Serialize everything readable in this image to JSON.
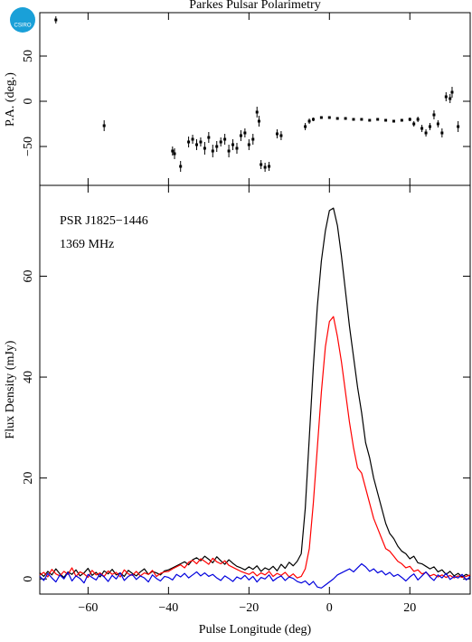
{
  "logo": {
    "text": "CSIRO"
  },
  "chart_data": [
    {
      "type": "scatter",
      "title": "Parkes Pulsar Polarimetry",
      "ylabel": "P.A. (deg.)",
      "color": "#000000",
      "x": [
        -68,
        -56,
        -39,
        -38.5,
        -37,
        -35,
        -34,
        -33,
        -32,
        -31,
        -30,
        -29,
        -28,
        -27,
        -26,
        -25,
        -24,
        -23,
        -22,
        -21,
        -20,
        -19,
        -18,
        -17.5,
        -17,
        -16,
        -15,
        -13,
        -12,
        -6,
        -5,
        -4,
        -2,
        0,
        2,
        4,
        6,
        8,
        10,
        12,
        14,
        16,
        18,
        20,
        21,
        22,
        23,
        24,
        25,
        26,
        27,
        28,
        29,
        30,
        30.5,
        32
      ],
      "values": [
        90,
        -27,
        -55,
        -58,
        -72,
        -45,
        -42,
        -48,
        -45,
        -52,
        -40,
        -55,
        -50,
        -45,
        -42,
        -55,
        -48,
        -52,
        -38,
        -35,
        -48,
        -42,
        -12,
        -22,
        -70,
        -73,
        -72,
        -36,
        -38,
        -28,
        -22,
        -20,
        -18,
        -18,
        -19,
        -19,
        -20,
        -20,
        -21,
        -20,
        -21,
        -22,
        -21,
        -20,
        -25,
        -20,
        -30,
        -35,
        -28,
        -15,
        -25,
        -35,
        5,
        3,
        10,
        -28
      ],
      "errors": [
        4,
        6,
        5,
        6,
        6,
        6,
        5,
        6,
        5,
        7,
        6,
        7,
        6,
        5,
        6,
        7,
        6,
        6,
        6,
        5,
        6,
        6,
        6,
        6,
        5,
        5,
        5,
        5,
        5,
        4,
        3,
        2,
        1,
        1,
        1,
        1,
        1,
        1,
        1,
        1,
        1,
        1,
        1,
        2,
        3,
        3,
        4,
        4,
        4,
        5,
        4,
        5,
        5,
        5,
        6,
        6
      ],
      "xlim": [
        -72,
        35
      ],
      "ylim": [
        -93,
        98
      ],
      "yticks": [
        {
          "value": -50,
          "label": "−50"
        },
        0,
        50
      ]
    },
    {
      "type": "line",
      "ylabel": "Flux Density (mJy)",
      "xlabel": "Pulse Longitude (deg)",
      "annotations": [
        "PSR J1825−1446",
        "1369 MHz"
      ],
      "x": [
        -72,
        -71,
        -70,
        -69,
        -68,
        -67,
        -66,
        -65,
        -64,
        -63,
        -62,
        -61,
        -60,
        -59,
        -58,
        -57,
        -56,
        -55,
        -54,
        -53,
        -52,
        -51,
        -50,
        -49,
        -48,
        -47,
        -46,
        -45,
        -44,
        -43,
        -42,
        -41,
        -40,
        -39,
        -38,
        -37,
        -36,
        -35,
        -34,
        -33,
        -32,
        -31,
        -30,
        -29,
        -28,
        -27,
        -26,
        -25,
        -24,
        -23,
        -22,
        -21,
        -20,
        -19,
        -18,
        -17,
        -16,
        -15,
        -14,
        -13,
        -12,
        -11,
        -10,
        -9,
        -8,
        -7,
        -6,
        -5,
        -4,
        -3,
        -2,
        -1,
        0,
        1,
        2,
        3,
        4,
        5,
        6,
        7,
        8,
        9,
        10,
        11,
        12,
        13,
        14,
        15,
        16,
        17,
        18,
        19,
        20,
        21,
        22,
        23,
        24,
        25,
        26,
        27,
        28,
        29,
        30,
        31,
        32,
        33,
        34,
        35
      ],
      "series": [
        {
          "color": "#000000",
          "values": [
            1.2,
            0.5,
            1.5,
            0.8,
            2,
            1,
            0.3,
            1.4,
            0.9,
            1.8,
            0.6,
            1.2,
            2.1,
            0.7,
            1.3,
            0.4,
            1.6,
            1,
            1.9,
            0.8,
            1.2,
            0.5,
            1.7,
            1.1,
            0.6,
            1.4,
            2,
            0.9,
            1.5,
            1.2,
            0.8,
            1.6,
            1.8,
            2.2,
            2.6,
            3,
            3.4,
            2.8,
            3.8,
            4.2,
            3.6,
            4.5,
            3.9,
            3.2,
            4.4,
            3.6,
            2.9,
            3.8,
            3.1,
            2.5,
            2.2,
            1.8,
            2.4,
            1.9,
            2.6,
            1.5,
            2.2,
            1.8,
            2.5,
            1.6,
            2.9,
            2.1,
            3.3,
            2.6,
            3.5,
            5,
            14,
            28,
            42,
            54,
            63,
            69,
            73,
            73.5,
            70,
            64,
            57,
            50,
            44,
            38,
            33,
            27,
            24,
            20,
            17,
            14,
            11,
            9,
            8,
            6.5,
            5.5,
            5,
            4,
            4.5,
            3.2,
            3,
            2.5,
            2,
            2.4,
            1.4,
            1.8,
            0.9,
            1.5,
            0.6,
            1.1,
            0.4,
            0.9,
            0.5
          ]
        },
        {
          "color": "#ff0000",
          "values": [
            0.8,
            1.3,
            0.4,
            1.9,
            1,
            0.6,
            1.5,
            0.9,
            2.2,
            0.5,
            1.4,
            1,
            0.3,
            1.7,
            0.8,
            1.2,
            0.5,
            1.6,
            0.9,
            1.3,
            0.4,
            1.8,
            1,
            0.7,
            1.5,
            0.6,
            1.2,
            0.9,
            1.7,
            0.5,
            1.1,
            1.4,
            1.5,
            2,
            2.4,
            2.8,
            2.2,
            3.3,
            3.7,
            3,
            4,
            3.5,
            2.9,
            4.1,
            3.4,
            3,
            3.6,
            2.7,
            2.3,
            1.9,
            1.5,
            1.2,
            0.9,
            1.4,
            0.6,
            1.2,
            0.8,
            1.5,
            0.5,
            1.1,
            0.7,
            1.3,
            0.4,
            1,
            0.2,
            0.5,
            2,
            6,
            15,
            26,
            37,
            46,
            51,
            52,
            48,
            43,
            37,
            31,
            26,
            22,
            21,
            18,
            15,
            12,
            10,
            8,
            6,
            5.5,
            4.5,
            3.5,
            3,
            2.2,
            2.5,
            1.5,
            1.8,
            1,
            1.3,
            0.6,
            0.9,
            0.4,
            0.8,
            0.3,
            0.7,
            0.2,
            0.6,
            0.3,
            0.5,
            0.8
          ]
        },
        {
          "color": "#0000dd",
          "values": [
            0.5,
            -0.3,
            1.1,
            0.2,
            -0.6,
            0.8,
            0,
            1.3,
            -0.4,
            0.6,
            0.1,
            -0.8,
            0.9,
            0.3,
            -0.2,
            1,
            0.4,
            -0.5,
            0.7,
            0,
            1.2,
            -0.3,
            0.5,
            0.9,
            -0.1,
            0.6,
            0.2,
            -0.6,
            0.8,
            0.1,
            -0.4,
            0.5,
            0.3,
            -0.2,
            0.9,
            0.4,
            1.1,
            0.2,
            0.8,
            1.4,
            0.6,
            1.2,
            0.5,
            0.9,
            0.2,
            -0.3,
            0.6,
            0.1,
            -0.5,
            0.4,
            0,
            0.7,
            -0.2,
            0.5,
            -0.6,
            0.3,
            0,
            0.8,
            -0.4,
            0.2,
            0.6,
            -0.3,
            0.4,
            0.1,
            -0.5,
            -0.8,
            -0.4,
            -1.2,
            -0.5,
            -1.6,
            -1.8,
            -1.2,
            -0.6,
            0,
            0.8,
            1.2,
            1.6,
            2,
            1.4,
            2.2,
            3,
            2.4,
            1.5,
            2,
            1.2,
            1.6,
            0.8,
            1.3,
            0.5,
            0.9,
            0.3,
            -0.4,
            0.4,
            1,
            -0.2,
            0.6,
            1.4,
            0.4,
            -0.3,
            0.8,
            0.2,
            1.1,
            -0.1,
            0.5,
            0.2,
            0.9,
            -0.2,
            0.4
          ]
        }
      ],
      "xlim": [
        -72,
        35
      ],
      "ylim": [
        -3,
        78
      ],
      "xticks": [
        {
          "value": -60,
          "label": "−60"
        },
        {
          "value": -40,
          "label": "−40"
        },
        {
          "value": -20,
          "label": "−20"
        },
        0,
        20
      ],
      "yticks": [
        0,
        20,
        40,
        60
      ]
    }
  ]
}
